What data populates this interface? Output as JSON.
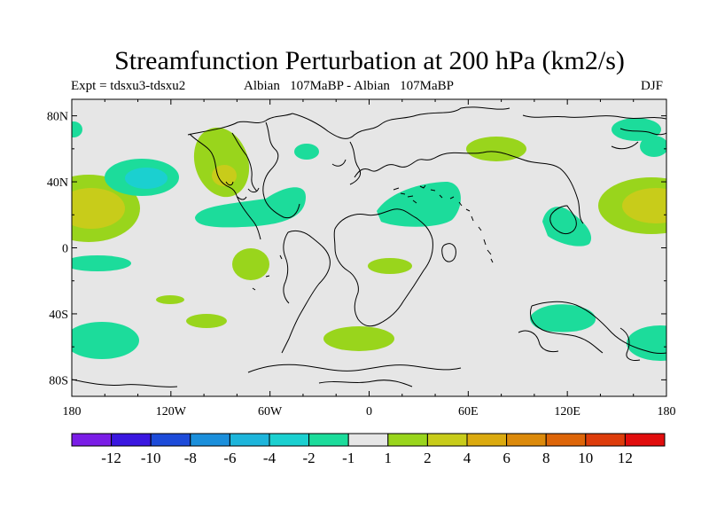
{
  "title": "Streamfunction Perturbation at 200 hPa (km2/s)",
  "subtitle_left": "Expt = tdsxu3-tdsxu2",
  "subtitle_center": "Albian   107MaBP - Albian   107MaBP",
  "subtitle_right": "DJF",
  "y_ticks": [
    {
      "label": "80N",
      "lat": 80
    },
    {
      "label": "40N",
      "lat": 40
    },
    {
      "label": "0",
      "lat": 0
    },
    {
      "label": "40S",
      "lat": -40
    },
    {
      "label": "80S",
      "lat": -80
    }
  ],
  "x_ticks": [
    {
      "label": "180",
      "lon": -180
    },
    {
      "label": "120W",
      "lon": -120
    },
    {
      "label": "60W",
      "lon": -60
    },
    {
      "label": "0",
      "lon": 0
    },
    {
      "label": "60E",
      "lon": 60
    },
    {
      "label": "120E",
      "lon": 120
    },
    {
      "label": "180",
      "lon": 180
    }
  ],
  "colorbar": {
    "colors": [
      "#7a1de6",
      "#3a17e0",
      "#1d4bd9",
      "#1b8fdb",
      "#1db5db",
      "#1bd0d0",
      "#1cdc9b",
      "#e6e6e6",
      "#99d51c",
      "#c8cc1a",
      "#dbaa0f",
      "#dc8a0b",
      "#dd6508",
      "#dd3c0b",
      "#e10d0d"
    ],
    "labels": [
      "-12",
      "-10",
      "-8",
      "-6",
      "-4",
      "-2",
      "-1",
      "1",
      "2",
      "4",
      "6",
      "8",
      "10",
      "12"
    ]
  },
  "colors": {
    "background": "#e6e6e6",
    "frame": "#000000",
    "coast": "#000000"
  }
}
